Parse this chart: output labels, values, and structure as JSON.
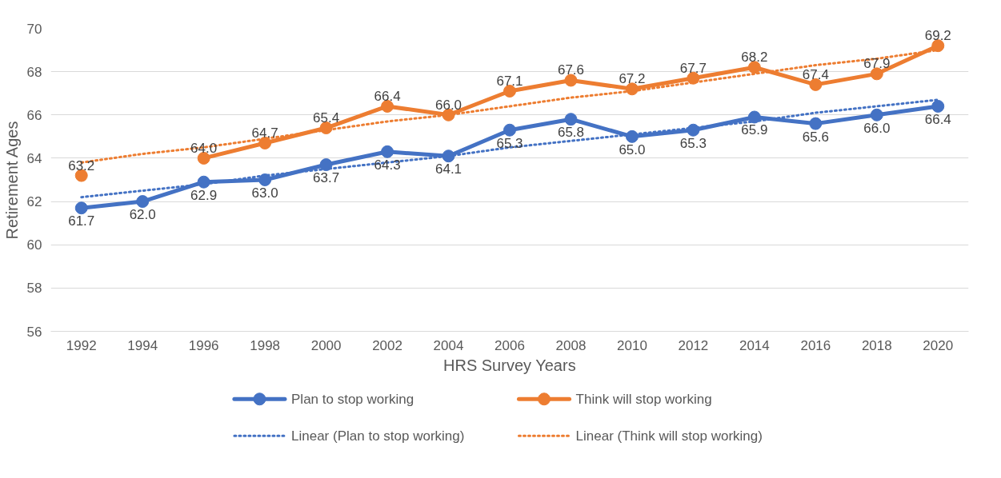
{
  "chart_data": {
    "type": "line",
    "xlabel": "HRS Survey Years",
    "ylabel": "Retirement Ages",
    "categories": [
      "1992",
      "1994",
      "1996",
      "1998",
      "2000",
      "2002",
      "2004",
      "2006",
      "2008",
      "2010",
      "2012",
      "2014",
      "2016",
      "2018",
      "2020"
    ],
    "ylim": [
      56,
      70
    ],
    "yticks": [
      56,
      58,
      60,
      62,
      64,
      66,
      68,
      70
    ],
    "grid": "y",
    "legend": "bottom",
    "series": [
      {
        "name": "Plan to stop working",
        "color": "#4472c4",
        "marker": "circle",
        "line_style": "solid",
        "values": [
          61.7,
          62.0,
          62.9,
          63.0,
          63.7,
          64.3,
          64.1,
          65.3,
          65.8,
          65.0,
          65.3,
          65.9,
          65.6,
          66.0,
          66.4
        ],
        "value_labels": [
          "61.7",
          "62.0",
          "62.9",
          "63.0",
          "63.7",
          "64.3",
          "64.1",
          "65.3",
          "65.8",
          "65.0",
          "65.3",
          "65.9",
          "65.6",
          "66.0",
          "66.4"
        ]
      },
      {
        "name": "Think will stop working",
        "color": "#ed7d31",
        "marker": "circle",
        "line_style": "solid",
        "values": [
          63.2,
          null,
          64.0,
          64.7,
          65.4,
          66.4,
          66.0,
          67.1,
          67.6,
          67.2,
          67.7,
          68.2,
          67.4,
          67.9,
          69.2
        ],
        "value_labels": [
          "63.2",
          null,
          "64.0",
          "64.7",
          "65.4",
          "66.4",
          "66.0",
          "67.1",
          "67.6",
          "67.2",
          "67.7",
          "68.2",
          "67.4",
          "67.9",
          "69.2"
        ]
      },
      {
        "name": "Linear (Plan to stop working)",
        "color": "#4472c4",
        "marker": "none",
        "line_style": "dotted",
        "values": [
          62.2,
          62.5,
          62.8,
          63.2,
          63.5,
          63.8,
          64.1,
          64.5,
          64.8,
          65.1,
          65.4,
          65.7,
          66.1,
          66.4,
          66.7
        ]
      },
      {
        "name": "Linear (Think will stop working)",
        "color": "#ed7d31",
        "marker": "none",
        "line_style": "dotted",
        "values": [
          63.8,
          64.2,
          64.5,
          64.9,
          65.3,
          65.7,
          66.0,
          66.4,
          66.8,
          67.1,
          67.5,
          67.9,
          68.3,
          68.6,
          69.0
        ]
      }
    ]
  }
}
